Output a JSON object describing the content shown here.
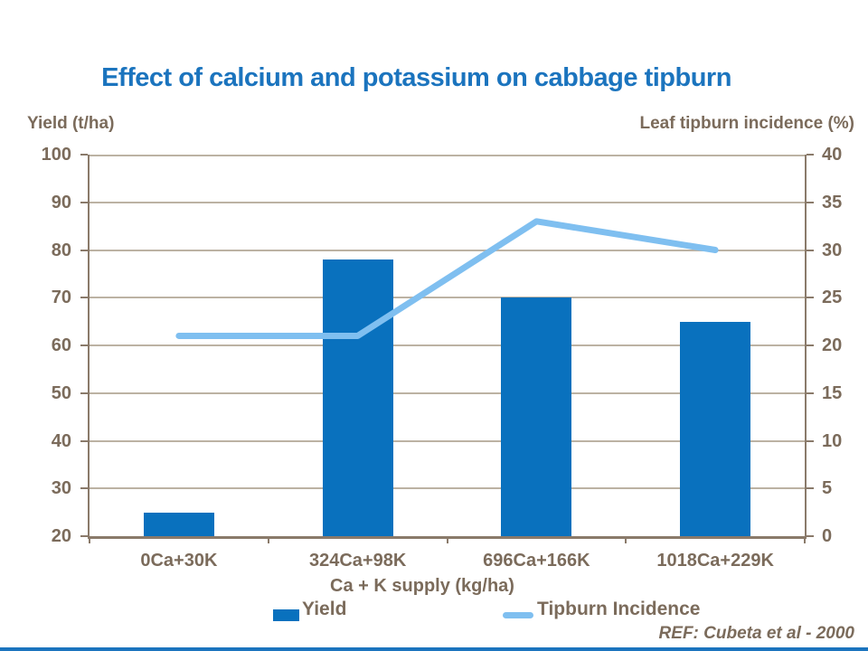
{
  "title": "Effect of calcium and potassium on cabbage tipburn",
  "left_axis_title": "Yield (t/ha)",
  "right_axis_title": "Leaf tipburn incidence (%)",
  "x_axis_title": "Ca + K supply (kg/ha)",
  "ref_note": "REF: Cubeta et al - 2000",
  "legend": {
    "yield_label": "Yield",
    "tipburn_label": "Tipburn Incidence"
  },
  "colors": {
    "title_blue": "#1B74BE",
    "bar_blue": "#0971BE",
    "line_blue": "#7FBFF0",
    "text_brown": "#7B6B5B",
    "gridline": "#BCB2A3",
    "axis_line": "#8A7A6A",
    "bottom_strip_blue": "#1B74BE"
  },
  "chart_data": {
    "type": "bar+line combo, dual axis",
    "categories": [
      "0Ca+30K",
      "324Ca+98K",
      "696Ca+166K",
      "1018Ca+229K"
    ],
    "series": [
      {
        "name": "Yield",
        "type": "bar",
        "axis": "left",
        "values": [
          25,
          78,
          70,
          65
        ]
      },
      {
        "name": "Tipburn Incidence",
        "type": "line",
        "axis": "right",
        "values": [
          21,
          21,
          33,
          30
        ]
      }
    ],
    "title": "Effect of calcium and potassium on cabbage tipburn",
    "xlabel": "Ca + K supply (kg/ha)",
    "left_axis": {
      "label": "Yield (t/ha)",
      "min": 20,
      "max": 100,
      "step": 10
    },
    "right_axis": {
      "label": "Leaf tipburn incidence (%)",
      "min": 0,
      "max": 40,
      "step": 5
    },
    "grid": "horizontal gridlines on",
    "legend_position": "bottom"
  }
}
